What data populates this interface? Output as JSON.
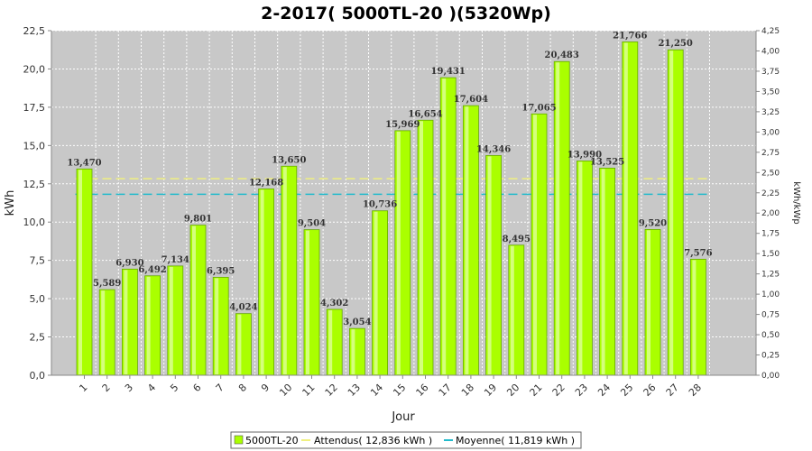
{
  "chart_data": {
    "type": "bar",
    "title": "2-2017( 5000TL-20 )(5320Wp)",
    "xlabel": "Jour",
    "ylabel": "kWh",
    "y2label": "kWh/kWp",
    "ylim": [
      0,
      22.5
    ],
    "y2lim": [
      0,
      4.25
    ],
    "grid": true,
    "legend_position": "bottom",
    "categories": [
      "1",
      "2",
      "3",
      "4",
      "5",
      "6",
      "7",
      "8",
      "9",
      "10",
      "11",
      "12",
      "13",
      "14",
      "15",
      "16",
      "17",
      "18",
      "19",
      "20",
      "21",
      "22",
      "23",
      "24",
      "25",
      "26",
      "27",
      "28"
    ],
    "series": [
      {
        "name": "5000TL-20",
        "values": [
          13.47,
          5.589,
          6.93,
          6.492,
          7.134,
          9.801,
          6.395,
          4.024,
          12.168,
          13.65,
          9.504,
          4.302,
          3.054,
          10.736,
          15.969,
          16.654,
          19.431,
          17.604,
          14.346,
          8.495,
          17.065,
          20.483,
          13.99,
          13.525,
          21.766,
          9.52,
          21.25,
          7.576
        ],
        "value_labels": [
          "13,470",
          "5,589",
          "6,930",
          "6,492",
          "7,134",
          "9,801",
          "6,395",
          "4,024",
          "12,168",
          "13,650",
          "9,504",
          "4,302",
          "3,054",
          "10,736",
          "15,969",
          "16,654",
          "19,431",
          "17,604",
          "14,346",
          "8,495",
          "17,065",
          "20,483",
          "13,990",
          "13,525",
          "21,766",
          "9,520",
          "21,250",
          "7,576"
        ],
        "color": "#aaff00"
      }
    ],
    "reference_lines": [
      {
        "name": "Attendus",
        "label": "Attendus( 12,836 kWh )",
        "value": 12.836,
        "color": "#f0f080"
      },
      {
        "name": "Moyenne",
        "label": "Moyenne( 11,819 kWh )",
        "value": 11.819,
        "color": "#22bbcc"
      }
    ],
    "y_ticks": [
      "0,0",
      "2,5",
      "5,0",
      "7,5",
      "10,0",
      "12,5",
      "15,0",
      "17,5",
      "20,0",
      "22,5"
    ],
    "y2_ticks": [
      "0,00",
      "0,25",
      "0,50",
      "0,75",
      "1,00",
      "1,25",
      "1,50",
      "1,75",
      "2,00",
      "2,25",
      "2,50",
      "2,75",
      "3,00",
      "3,25",
      "3,50",
      "3,75",
      "4,00",
      "4,25"
    ]
  }
}
